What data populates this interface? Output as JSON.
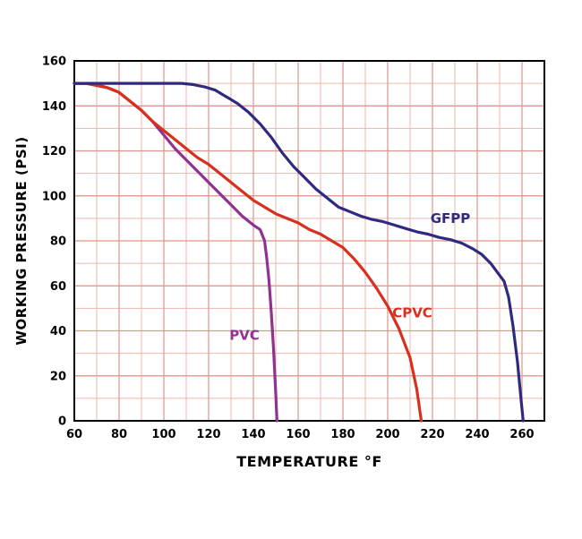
{
  "figure": {
    "background": "#ffffff"
  },
  "chart_data": {
    "type": "line",
    "title": "",
    "xlabel": "TEMPERATURE °F",
    "ylabel": "WORKING PRESSURE (PSI)",
    "xlim": [
      60,
      270
    ],
    "ylim": [
      0,
      160
    ],
    "xticks": [
      60,
      80,
      100,
      120,
      140,
      160,
      180,
      200,
      220,
      240,
      260
    ],
    "yticks": [
      0,
      20,
      40,
      60,
      80,
      100,
      120,
      140,
      160
    ],
    "grid": true,
    "minor_step_x": 10,
    "minor_step_y": 10,
    "legend_position": "inline-annotations",
    "colors": {
      "grid_minor": "#edb6ae",
      "grid_major": "#de958b",
      "border": "#000000",
      "tick_text": "#000000",
      "plot_bg": "#ffffff"
    },
    "series": [
      {
        "name": "PVC",
        "color": "#8f3290",
        "points": [
          [
            60,
            150
          ],
          [
            66,
            150
          ],
          [
            70,
            149.5
          ],
          [
            75,
            148
          ],
          [
            80,
            146
          ],
          [
            85,
            142
          ],
          [
            90,
            138
          ],
          [
            95,
            133
          ],
          [
            100,
            127
          ],
          [
            105,
            121
          ],
          [
            110,
            116
          ],
          [
            115,
            111
          ],
          [
            120,
            106
          ],
          [
            125,
            101
          ],
          [
            130,
            96
          ],
          [
            135,
            91
          ],
          [
            140,
            87
          ],
          [
            143,
            85
          ],
          [
            145,
            80
          ],
          [
            146,
            72
          ],
          [
            147,
            62
          ],
          [
            148,
            48
          ],
          [
            149,
            32
          ],
          [
            150,
            12
          ],
          [
            150.5,
            0
          ]
        ]
      },
      {
        "name": "CPVC",
        "color": "#d7301f",
        "points": [
          [
            60,
            150
          ],
          [
            65,
            150
          ],
          [
            70,
            149
          ],
          [
            75,
            148
          ],
          [
            80,
            146
          ],
          [
            85,
            142
          ],
          [
            90,
            138
          ],
          [
            95,
            133
          ],
          [
            100,
            129
          ],
          [
            105,
            125
          ],
          [
            110,
            121
          ],
          [
            115,
            117
          ],
          [
            120,
            114
          ],
          [
            125,
            110
          ],
          [
            130,
            106
          ],
          [
            135,
            102
          ],
          [
            140,
            98
          ],
          [
            145,
            95
          ],
          [
            150,
            92
          ],
          [
            155,
            90
          ],
          [
            160,
            88
          ],
          [
            165,
            85
          ],
          [
            170,
            83
          ],
          [
            175,
            80
          ],
          [
            180,
            77
          ],
          [
            185,
            72
          ],
          [
            190,
            66
          ],
          [
            195,
            59
          ],
          [
            200,
            51
          ],
          [
            205,
            41
          ],
          [
            210,
            28
          ],
          [
            213,
            14
          ],
          [
            215,
            0
          ]
        ]
      },
      {
        "name": "GFPP",
        "color": "#2f2a80",
        "points": [
          [
            60,
            150
          ],
          [
            70,
            150
          ],
          [
            80,
            150
          ],
          [
            90,
            150
          ],
          [
            100,
            150
          ],
          [
            108,
            150
          ],
          [
            113,
            149.5
          ],
          [
            118,
            148.5
          ],
          [
            123,
            147
          ],
          [
            128,
            144
          ],
          [
            133,
            141
          ],
          [
            138,
            137
          ],
          [
            143,
            132
          ],
          [
            148,
            126
          ],
          [
            153,
            119
          ],
          [
            158,
            113
          ],
          [
            163,
            108
          ],
          [
            168,
            103
          ],
          [
            173,
            99
          ],
          [
            178,
            95
          ],
          [
            183,
            93
          ],
          [
            188,
            91
          ],
          [
            193,
            89.5
          ],
          [
            198,
            88.5
          ],
          [
            203,
            87
          ],
          [
            208,
            85.5
          ],
          [
            213,
            84
          ],
          [
            218,
            83
          ],
          [
            223,
            81.5
          ],
          [
            228,
            80.5
          ],
          [
            233,
            79
          ],
          [
            238,
            76.5
          ],
          [
            242,
            74
          ],
          [
            246,
            70
          ],
          [
            249,
            66
          ],
          [
            252,
            62
          ],
          [
            254,
            55
          ],
          [
            256,
            42
          ],
          [
            258,
            26
          ],
          [
            259.5,
            10
          ],
          [
            260.5,
            0
          ]
        ]
      }
    ],
    "annotations": [
      {
        "label": "PVC",
        "x": 136,
        "y": 36,
        "color": "#8f3290"
      },
      {
        "label": "CPVC",
        "x": 211,
        "y": 46,
        "color": "#d7301f"
      },
      {
        "label": "GFPP",
        "x": 228,
        "y": 88,
        "color": "#2f2a80"
      }
    ]
  }
}
